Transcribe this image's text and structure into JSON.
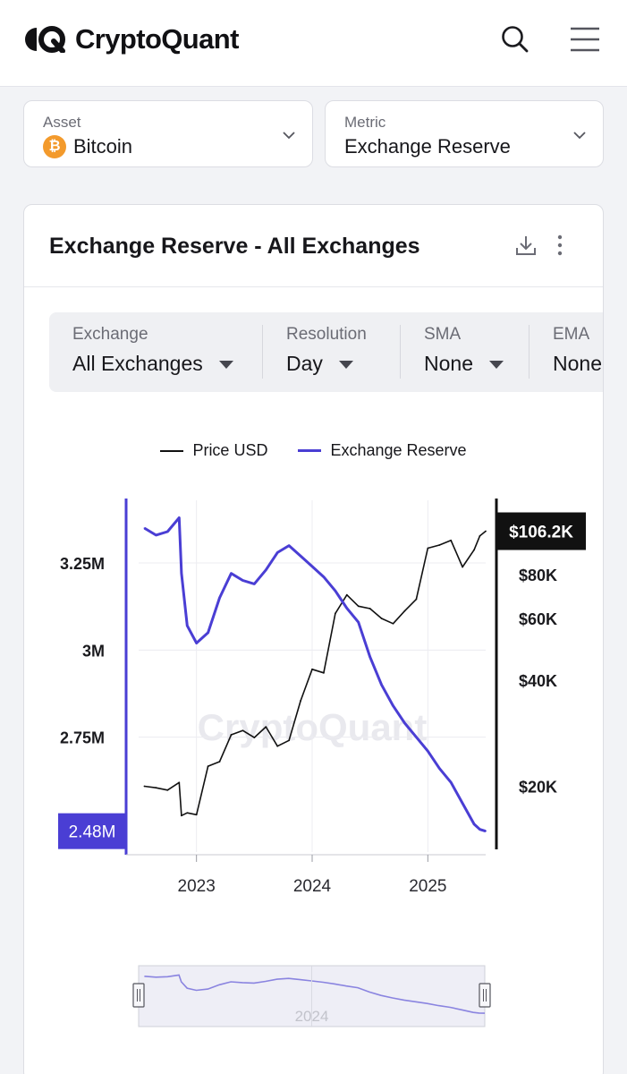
{
  "header": {
    "brand": "CryptoQuant",
    "icons": [
      "logo-icon",
      "search-icon",
      "menu-icon"
    ]
  },
  "selectors": {
    "asset": {
      "label": "Asset",
      "value": "Bitcoin",
      "coin_glyph": "₿"
    },
    "metric": {
      "label": "Metric",
      "value": "Exchange Reserve"
    }
  },
  "card": {
    "title": "Exchange Reserve - All Exchanges",
    "icons": [
      "download-icon",
      "more-vertical-icon"
    ]
  },
  "controls": [
    {
      "label": "Exchange",
      "value": "All Exchanges"
    },
    {
      "label": "Resolution",
      "value": "Day"
    },
    {
      "label": "SMA",
      "value": "None"
    },
    {
      "label": "EMA",
      "value": "None"
    }
  ],
  "colors": {
    "reserve": "#4a3ed4",
    "price": "#111111",
    "btc": "#f39a2c"
  },
  "chart_data": {
    "type": "line",
    "title": "Exchange Reserve - All Exchanges",
    "watermark": "CryptoQuant",
    "x": [
      2022.55,
      2022.65,
      2022.75,
      2022.85,
      2022.87,
      2022.92,
      2023.0,
      2023.1,
      2023.2,
      2023.3,
      2023.4,
      2023.5,
      2023.6,
      2023.7,
      2023.8,
      2023.9,
      2024.0,
      2024.1,
      2024.2,
      2024.3,
      2024.4,
      2024.5,
      2024.6,
      2024.7,
      2024.8,
      2024.9,
      2025.0,
      2025.1,
      2025.2,
      2025.3,
      2025.4,
      2025.45,
      2025.5
    ],
    "series": [
      {
        "name": "Price USD",
        "axis": "right",
        "values": [
          20000,
          19800,
          19500,
          20500,
          16500,
          16800,
          16600,
          22800,
          23500,
          28000,
          28800,
          27500,
          29500,
          26000,
          27000,
          35000,
          43000,
          42000,
          62000,
          70000,
          65000,
          64000,
          60000,
          58000,
          63000,
          68000,
          95000,
          97000,
          100000,
          84000,
          94000,
          103000,
          106200
        ]
      },
      {
        "name": "Exchange Reserve",
        "axis": "left",
        "values": [
          3.35,
          3.33,
          3.34,
          3.38,
          3.22,
          3.07,
          3.02,
          3.05,
          3.15,
          3.22,
          3.2,
          3.19,
          3.23,
          3.28,
          3.3,
          3.27,
          3.24,
          3.21,
          3.17,
          3.12,
          3.08,
          2.98,
          2.9,
          2.84,
          2.79,
          2.75,
          2.71,
          2.66,
          2.62,
          2.56,
          2.5,
          2.485,
          2.48
        ]
      }
    ],
    "left_axis": {
      "ticks": [
        "3.25M",
        "3M",
        "2.75M"
      ],
      "tick_values": [
        3.25,
        3.0,
        2.75
      ],
      "range": [
        2.42,
        3.43
      ],
      "current_label": "2.48M"
    },
    "right_axis": {
      "ticks": [
        "$80K",
        "$60K",
        "$40K",
        "$20K"
      ],
      "tick_values": [
        80000,
        60000,
        40000,
        20000
      ],
      "scale": "log",
      "range": [
        13000,
        130000
      ],
      "current_label": "$106.2K"
    },
    "x_axis": {
      "ticks": [
        "2023",
        "2024",
        "2025"
      ],
      "tick_values": [
        2023.0,
        2024.0,
        2025.0
      ],
      "range": [
        2022.5,
        2025.5
      ]
    },
    "navigator": {
      "label": "2024"
    },
    "legend": [
      "Price USD",
      "Exchange Reserve"
    ],
    "grid": true,
    "legend_position": "top-center"
  }
}
